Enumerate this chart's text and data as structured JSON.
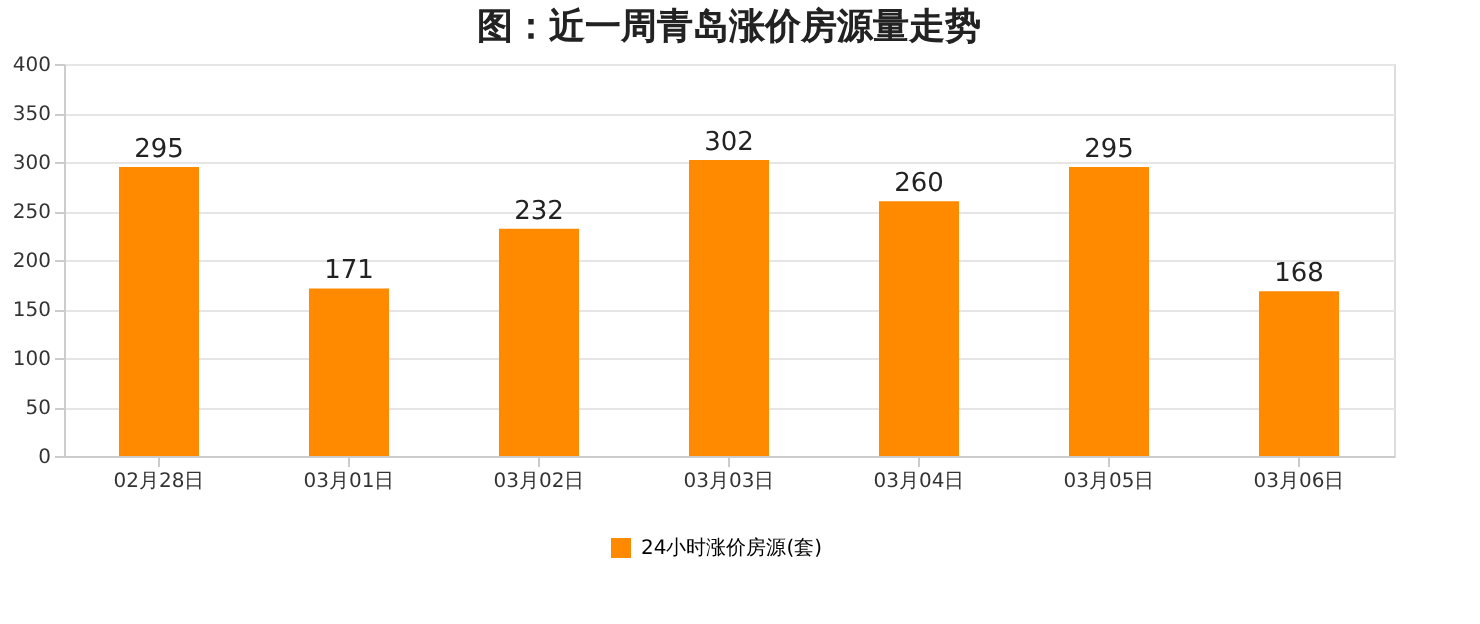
{
  "chart_data": {
    "type": "bar",
    "title": "图：近一周青岛涨价房源量走势",
    "categories": [
      "02月28日",
      "03月01日",
      "03月02日",
      "03月03日",
      "03月04日",
      "03月05日",
      "03月06日"
    ],
    "series": [
      {
        "name": "24小时涨价房源(套)",
        "color": "#ff8a00",
        "values": [
          295,
          171,
          232,
          302,
          260,
          295,
          168
        ]
      }
    ],
    "ylim": [
      0,
      400
    ],
    "yticks": [
      0,
      50,
      100,
      150,
      200,
      250,
      300,
      350,
      400
    ],
    "grid": "y",
    "legend": "bottom",
    "data_labels": true
  }
}
